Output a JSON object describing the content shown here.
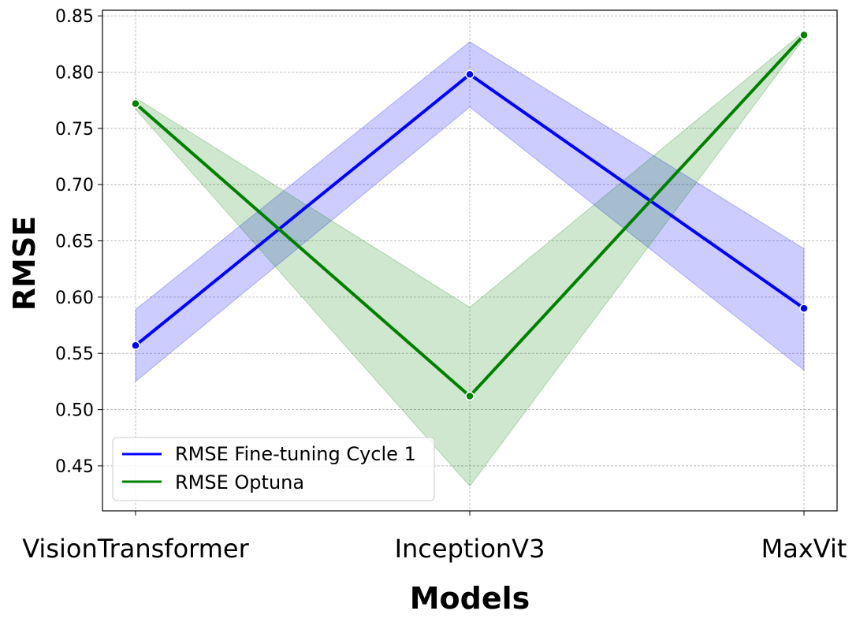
{
  "chart_data": {
    "type": "line",
    "title": "",
    "xlabel": "Models",
    "ylabel": "RMSE",
    "categories": [
      "VisionTransformer",
      "InceptionV3",
      "MaxVit"
    ],
    "ylim": [
      0.41,
      0.855
    ],
    "yticks": [
      "0.45",
      "0.50",
      "0.55",
      "0.60",
      "0.65",
      "0.70",
      "0.75",
      "0.80",
      "0.85"
    ],
    "grid": true,
    "legend_position": "lower-left",
    "series": [
      {
        "name": "RMSE Fine-tuning Cycle 1",
        "color": "#0000ff",
        "values": [
          0.557,
          0.798,
          0.59
        ],
        "band_lower": [
          0.525,
          0.769,
          0.535
        ],
        "band_upper": [
          0.589,
          0.827,
          0.643
        ]
      },
      {
        "name": "RMSE Optuna",
        "color": "#008000",
        "values": [
          0.772,
          0.512,
          0.833
        ],
        "band_lower": [
          0.767,
          0.432,
          0.83
        ],
        "band_upper": [
          0.777,
          0.591,
          0.836
        ]
      }
    ]
  }
}
